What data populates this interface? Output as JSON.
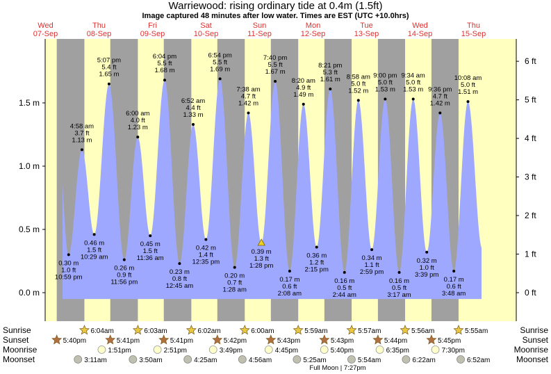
{
  "title": "Warriewood: rising  ordinary tide at 0.4m (1.5ft)",
  "subtitle": "Image captured 48 minutes after low water. Times are EST (UTC +10.0hrs)",
  "chart_data": {
    "type": "area",
    "ylim_m": [
      -0.05,
      1.95
    ],
    "left_axis_ticks": [
      "0.0 m",
      "0.5 m",
      "1.0 m",
      "1.5 m"
    ],
    "left_axis_values": [
      0.0,
      0.5,
      1.0,
      1.5
    ],
    "right_axis_ticks": [
      "0 ft",
      "1 ft",
      "2 ft",
      "3 ft",
      "4 ft",
      "5 ft",
      "6 ft"
    ],
    "right_axis_values_ft": [
      0,
      1,
      2,
      3,
      4,
      5,
      6
    ],
    "days": [
      {
        "dow": "Wed",
        "date": "07-Sep"
      },
      {
        "dow": "Thu",
        "date": "08-Sep"
      },
      {
        "dow": "Fri",
        "date": "09-Sep"
      },
      {
        "dow": "Sat",
        "date": "10-Sep"
      },
      {
        "dow": "Sun",
        "date": "11-Sep"
      },
      {
        "dow": "Mon",
        "date": "12-Sep"
      },
      {
        "dow": "Tue",
        "date": "13-Sep"
      },
      {
        "dow": "Wed",
        "date": "14-Sep"
      },
      {
        "dow": "Thu",
        "date": "15-Sep"
      }
    ],
    "tides": [
      {
        "type": "low",
        "day": 0,
        "time": "10:59 pm",
        "m": 0.3,
        "ft": "1.0 ft",
        "m_label": "0.30 m"
      },
      {
        "type": "high",
        "day": 1,
        "time": "4:58 am",
        "m": 1.13,
        "ft": "3.7 ft",
        "m_label": "1.13 m"
      },
      {
        "type": "low",
        "day": 1,
        "time": "10:29 am",
        "m": 0.46,
        "ft": "1.5 ft",
        "m_label": "0.46 m"
      },
      {
        "type": "high",
        "day": 1,
        "time": "5:07 pm",
        "m": 1.65,
        "ft": "5.4 ft",
        "m_label": "1.65 m"
      },
      {
        "type": "low",
        "day": 1,
        "time": "11:56 pm",
        "m": 0.26,
        "ft": "0.9 ft",
        "m_label": "0.26 m"
      },
      {
        "type": "high",
        "day": 2,
        "time": "6:00 am",
        "m": 1.23,
        "ft": "4.0 ft",
        "m_label": "1.23 m"
      },
      {
        "type": "low",
        "day": 2,
        "time": "11:36 am",
        "m": 0.45,
        "ft": "1.5 ft",
        "m_label": "0.45 m"
      },
      {
        "type": "high",
        "day": 2,
        "time": "6:04 pm",
        "m": 1.68,
        "ft": "5.5 ft",
        "m_label": "1.68 m"
      },
      {
        "type": "low",
        "day": 3,
        "time": "12:45 am",
        "m": 0.23,
        "ft": "0.8 ft",
        "m_label": "0.23 m"
      },
      {
        "type": "high",
        "day": 3,
        "time": "6:52 am",
        "m": 1.33,
        "ft": "4.4 ft",
        "m_label": "1.33 m"
      },
      {
        "type": "low",
        "day": 3,
        "time": "12:35 pm",
        "m": 0.42,
        "ft": "1.4 ft",
        "m_label": "0.42 m"
      },
      {
        "type": "high",
        "day": 3,
        "time": "6:54 pm",
        "m": 1.69,
        "ft": "5.5 ft",
        "m_label": "1.69 m"
      },
      {
        "type": "low",
        "day": 4,
        "time": "1:28 am",
        "m": 0.2,
        "ft": "0.7 ft",
        "m_label": "0.20 m"
      },
      {
        "type": "high",
        "day": 4,
        "time": "7:38 am",
        "m": 1.42,
        "ft": "4.7 ft",
        "m_label": "1.42 m"
      },
      {
        "type": "low",
        "day": 4,
        "time": "1:28 pm",
        "m": 0.39,
        "ft": "1.3 ft",
        "m_label": "0.39 m",
        "current": true
      },
      {
        "type": "high",
        "day": 4,
        "time": "7:40 pm",
        "m": 1.67,
        "ft": "5.5 ft",
        "m_label": "1.67 m"
      },
      {
        "type": "low",
        "day": 5,
        "time": "2:08 am",
        "m": 0.17,
        "ft": "0.6 ft",
        "m_label": "0.17 m"
      },
      {
        "type": "high",
        "day": 5,
        "time": "8:20 am",
        "m": 1.49,
        "ft": "4.9 ft",
        "m_label": "1.49 m"
      },
      {
        "type": "low",
        "day": 5,
        "time": "2:15 pm",
        "m": 0.36,
        "ft": "1.2 ft",
        "m_label": "0.36 m"
      },
      {
        "type": "high",
        "day": 5,
        "time": "8:21 pm",
        "m": 1.61,
        "ft": "5.3 ft",
        "m_label": "1.61 m"
      },
      {
        "type": "low",
        "day": 6,
        "time": "2:44 am",
        "m": 0.16,
        "ft": "0.5 ft",
        "m_label": "0.16 m"
      },
      {
        "type": "high",
        "day": 6,
        "time": "8:58 am",
        "m": 1.52,
        "ft": "5.0 ft",
        "m_label": "1.52 m"
      },
      {
        "type": "low",
        "day": 6,
        "time": "2:59 pm",
        "m": 0.34,
        "ft": "1.1 ft",
        "m_label": "0.34 m"
      },
      {
        "type": "high",
        "day": 6,
        "time": "9:00 pm",
        "m": 1.53,
        "ft": "5.0 ft",
        "m_label": "1.53 m"
      },
      {
        "type": "low",
        "day": 7,
        "time": "3:17 am",
        "m": 0.16,
        "ft": "0.5 ft",
        "m_label": "0.16 m"
      },
      {
        "type": "high",
        "day": 7,
        "time": "9:34 am",
        "m": 1.53,
        "ft": "5.0 ft",
        "m_label": "1.53 m"
      },
      {
        "type": "low",
        "day": 7,
        "time": "3:39 pm",
        "m": 0.32,
        "ft": "1.0 ft",
        "m_label": "0.32 m"
      },
      {
        "type": "high",
        "day": 7,
        "time": "9:36 pm",
        "m": 1.42,
        "ft": "4.7 ft",
        "m_label": "1.42 m"
      },
      {
        "type": "low",
        "day": 8,
        "time": "3:48 am",
        "m": 0.17,
        "ft": "0.6 ft",
        "m_label": "0.17 m"
      },
      {
        "type": "high",
        "day": 8,
        "time": "10:08 am",
        "m": 1.51,
        "ft": "5.0 ft",
        "m_label": "1.51 m"
      }
    ],
    "sunrise": [
      {
        "day": 1,
        "time": "6:04am"
      },
      {
        "day": 2,
        "time": "6:03am"
      },
      {
        "day": 3,
        "time": "6:02am"
      },
      {
        "day": 4,
        "time": "6:00am"
      },
      {
        "day": 5,
        "time": "5:59am"
      },
      {
        "day": 6,
        "time": "5:57am"
      },
      {
        "day": 7,
        "time": "5:56am"
      },
      {
        "day": 8,
        "time": "5:55am"
      }
    ],
    "sunset": [
      {
        "day": 0,
        "time": "5:40pm"
      },
      {
        "day": 1,
        "time": "5:41pm"
      },
      {
        "day": 2,
        "time": "5:41pm"
      },
      {
        "day": 3,
        "time": "5:42pm"
      },
      {
        "day": 4,
        "time": "5:43pm"
      },
      {
        "day": 5,
        "time": "5:43pm"
      },
      {
        "day": 6,
        "time": "5:44pm"
      },
      {
        "day": 7,
        "time": "5:45pm"
      }
    ],
    "moonrise": [
      {
        "day": 1,
        "time": "1:51pm"
      },
      {
        "day": 2,
        "time": "2:51pm"
      },
      {
        "day": 3,
        "time": "3:49pm"
      },
      {
        "day": 4,
        "time": "4:45pm"
      },
      {
        "day": 5,
        "time": "5:40pm"
      },
      {
        "day": 6,
        "time": "6:35pm"
      },
      {
        "day": 7,
        "time": "7:30pm"
      }
    ],
    "moonset": [
      {
        "day": 1,
        "time": "3:11am"
      },
      {
        "day": 2,
        "time": "3:50am"
      },
      {
        "day": 3,
        "time": "4:25am"
      },
      {
        "day": 4,
        "time": "4:56am"
      },
      {
        "day": 5,
        "time": "5:25am"
      },
      {
        "day": 6,
        "time": "5:54am"
      },
      {
        "day": 7,
        "time": "6:22am"
      },
      {
        "day": 8,
        "time": "6:52am"
      }
    ],
    "row_labels": {
      "sunrise": "Sunrise",
      "sunset": "Sunset",
      "moonrise": "Moonrise",
      "moonset": "Moonset"
    },
    "moon_phase_note": "Full Moon | 7:27pm",
    "colors": {
      "day": "#ffffc0",
      "night": "#a0a0a0",
      "water": "#9fa8ff",
      "day_label": "#e03030",
      "sun_star": "#e8c840",
      "sunset_star": "#b07040",
      "moonrise": "#ffffcc",
      "moonset": "#c0c0b0"
    }
  }
}
